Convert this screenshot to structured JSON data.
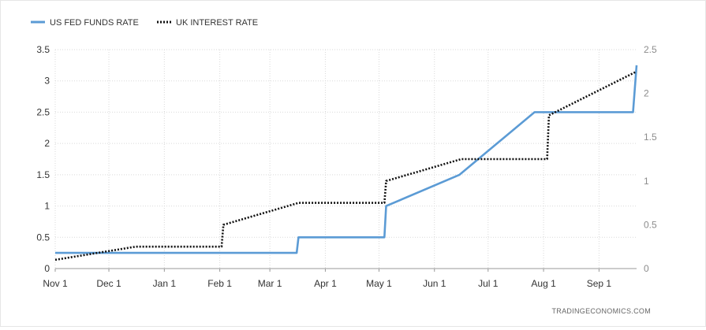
{
  "chart_data": {
    "type": "line",
    "x": [
      "Nov 1",
      "Nov 15",
      "Dec 1",
      "Dec 15",
      "Jan 1",
      "Jan 15",
      "Feb 1",
      "Feb 2",
      "Feb 15",
      "Mar 1",
      "Mar 17",
      "Apr 1",
      "Apr 15",
      "May 1",
      "May 5",
      "Jun 1",
      "Jun 16",
      "Jul 1",
      "Jul 15",
      "Jul 27",
      "Aug 1",
      "Aug 4",
      "Aug 15",
      "Sep 1",
      "Sep 15",
      "Sep 22"
    ],
    "x_ticks": [
      "Nov 1",
      "Dec 1",
      "Jan 1",
      "Feb 1",
      "Mar 1",
      "Apr 1",
      "May 1",
      "Jun 1",
      "Jul 1",
      "Aug 1",
      "Sep 1"
    ],
    "series": [
      {
        "name": "US FED FUNDS RATE",
        "axis": "left",
        "color": "#5b9bd5",
        "style": "solid",
        "points": [
          [
            "2021-11-01",
            0.25
          ],
          [
            "2022-03-16",
            0.25
          ],
          [
            "2022-03-17",
            0.5
          ],
          [
            "2022-05-04",
            0.5
          ],
          [
            "2022-05-05",
            1.0
          ],
          [
            "2022-06-15",
            1.5
          ],
          [
            "2022-07-27",
            2.5
          ],
          [
            "2022-09-20",
            2.5
          ],
          [
            "2022-09-22",
            3.25
          ]
        ]
      },
      {
        "name": "UK INTEREST RATE",
        "axis": "right",
        "color": "#111111",
        "style": "dotted",
        "points": [
          [
            "2021-11-01",
            0.1
          ],
          [
            "2021-12-16",
            0.25
          ],
          [
            "2022-02-02",
            0.25
          ],
          [
            "2022-02-03",
            0.5
          ],
          [
            "2022-03-17",
            0.75
          ],
          [
            "2022-05-04",
            0.75
          ],
          [
            "2022-05-05",
            1.0
          ],
          [
            "2022-06-16",
            1.25
          ],
          [
            "2022-08-03",
            1.25
          ],
          [
            "2022-08-04",
            1.75
          ],
          [
            "2022-09-22",
            2.25
          ]
        ]
      }
    ],
    "y_left": {
      "ticks": [
        "0",
        "0.5",
        "1",
        "1.5",
        "2",
        "2.5",
        "3",
        "3.5"
      ],
      "ylim": [
        0,
        3.5
      ]
    },
    "y_right": {
      "ticks": [
        "0",
        "0.5",
        "1",
        "1.5",
        "2",
        "2.5"
      ],
      "ylim": [
        0,
        2.5
      ]
    },
    "legend_position": "top-left",
    "grid": true
  },
  "legend": {
    "us_label": "US FED FUNDS RATE",
    "uk_label": "UK INTEREST RATE"
  },
  "credit": "TRADINGECONOMICS.COM"
}
